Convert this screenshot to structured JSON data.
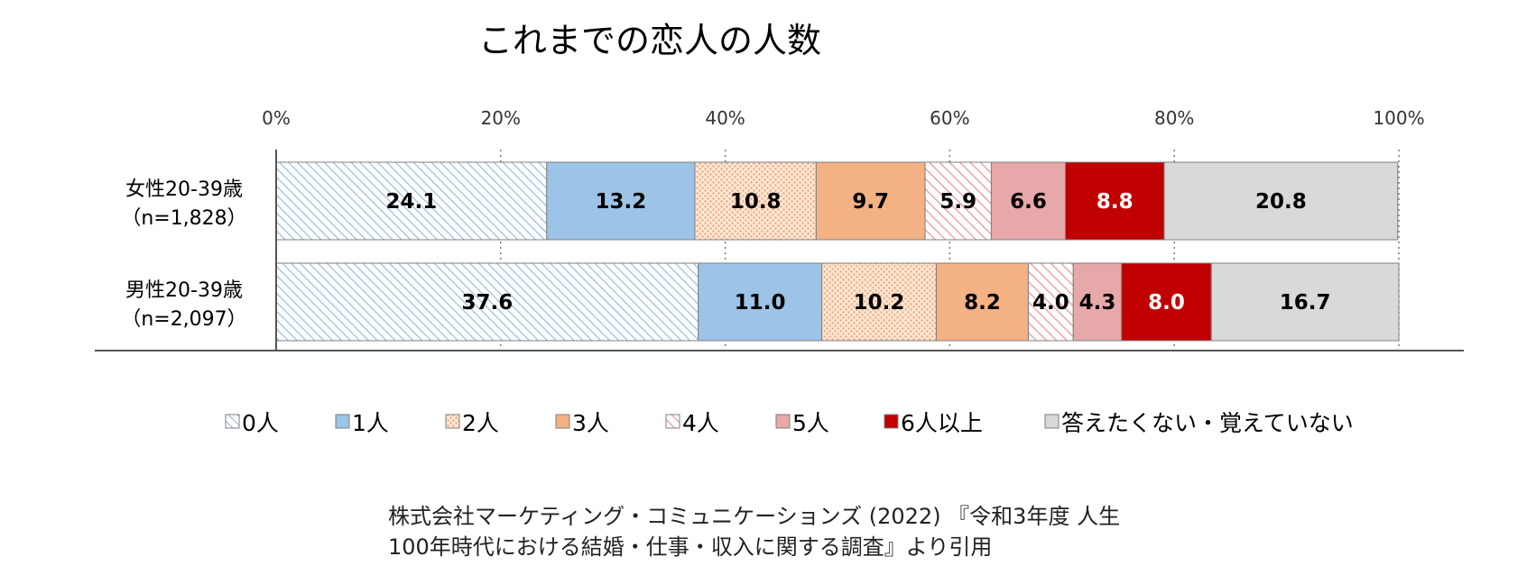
{
  "chart_data": {
    "type": "bar",
    "orientation": "horizontal",
    "stacked": true,
    "normalized": true,
    "title": "これまでの恋人の人数",
    "x_tick_labels": [
      "0%",
      "20%",
      "40%",
      "60%",
      "80%",
      "100%"
    ],
    "xlim": [
      0,
      100
    ],
    "grid": true,
    "legend_position": "bottom",
    "categories": [
      [
        "女性20-39歳",
        "（n=1,828）"
      ],
      [
        "男性20-39歳",
        "（n=2,097）"
      ]
    ],
    "series": [
      {
        "name": "0人",
        "values": [
          24.1,
          37.6
        ],
        "labels": [
          "24.1",
          "37.6"
        ],
        "color": "#9dc3e6",
        "pattern": "diagonal-hatch",
        "label_color": "#000000"
      },
      {
        "name": "1人",
        "values": [
          13.2,
          11.0
        ],
        "labels": [
          "13.2",
          "11.0"
        ],
        "color": "#9dc3e6",
        "pattern": "solid",
        "label_color": "#000000"
      },
      {
        "name": "2人",
        "values": [
          10.8,
          10.2
        ],
        "labels": [
          "10.8",
          "10.2"
        ],
        "color": "#f4b183",
        "pattern": "crosshatch",
        "label_color": "#000000"
      },
      {
        "name": "3人",
        "values": [
          9.7,
          8.2
        ],
        "labels": [
          "9.7",
          "8.2"
        ],
        "color": "#f4b183",
        "pattern": "solid",
        "label_color": "#000000"
      },
      {
        "name": "4人",
        "values": [
          5.9,
          4.0
        ],
        "labels": [
          "5.9",
          "4.0"
        ],
        "color": "#f2aaaa",
        "pattern": "diagonal-hatch",
        "label_color": "#000000"
      },
      {
        "name": "5人",
        "values": [
          6.6,
          4.3
        ],
        "labels": [
          "6.6",
          "4.3"
        ],
        "color": "#e6a8a8",
        "pattern": "solid",
        "label_color": "#000000"
      },
      {
        "name": "6人以上",
        "values": [
          8.8,
          8.0
        ],
        "labels": [
          "8.8",
          "8.0"
        ],
        "color": "#c00000",
        "pattern": "solid",
        "label_color": "#ffffff"
      },
      {
        "name": "答えたくない・覚えていない",
        "values": [
          20.8,
          16.7
        ],
        "labels": [
          "20.8",
          "16.7"
        ],
        "color": "#d9d9d9",
        "pattern": "solid",
        "label_color": "#000000"
      }
    ]
  },
  "source": {
    "line1": "株式会社マーケティング・コミュニケーションズ (2022) 『令和3年度 人生",
    "line2": "100年時代における結婚・仕事・収入に関する調査』より引用"
  }
}
